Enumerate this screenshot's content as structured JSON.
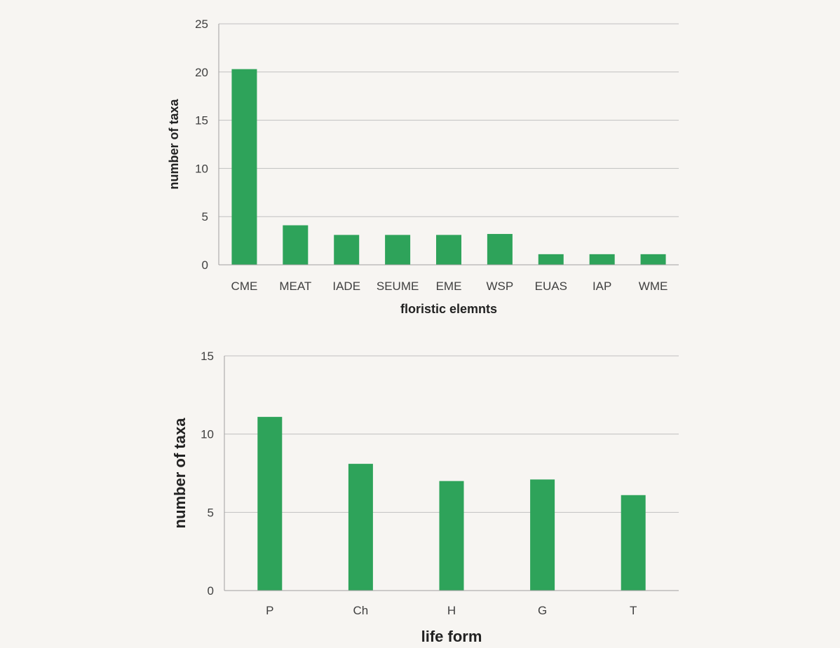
{
  "colors": {
    "background": "#f7f5f2",
    "bar": "#2ea35a",
    "grid": "#c0c0c0",
    "axis": "#a0a0a0",
    "text": "#404040",
    "title": "#222222"
  },
  "chart_data": [
    {
      "type": "bar",
      "categories": [
        "CME",
        "MEAT",
        "IADE",
        "SEUME",
        "EME",
        "WSP",
        "EUAS",
        "IAP",
        "WME"
      ],
      "values": [
        20.3,
        4.1,
        3.1,
        3.1,
        3.1,
        3.2,
        1.1,
        1.1,
        1.1
      ],
      "title": "",
      "xlabel": "floristic elemnts",
      "ylabel": "number of taxa",
      "ylim": [
        0,
        25
      ],
      "yticks": [
        0,
        5,
        10,
        15,
        20,
        25
      ],
      "grid": true,
      "legend": "none"
    },
    {
      "type": "bar",
      "categories": [
        "P",
        "Ch",
        "H",
        "G",
        "T"
      ],
      "values": [
        11.1,
        8.1,
        7.0,
        7.1,
        6.1
      ],
      "title": "",
      "xlabel": "life form",
      "ylabel": "number of taxa",
      "ylim": [
        0,
        15
      ],
      "yticks": [
        0,
        5,
        10,
        15
      ],
      "grid": true,
      "legend": "none"
    }
  ]
}
